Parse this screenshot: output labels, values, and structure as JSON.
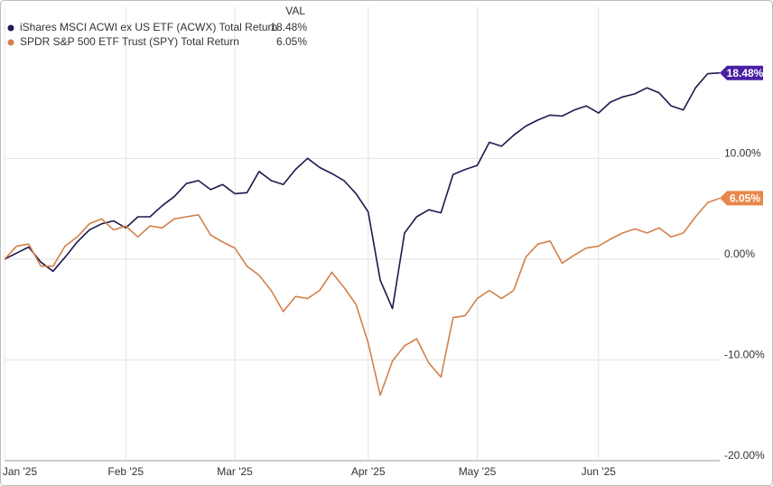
{
  "chart_data": {
    "type": "line",
    "legend_header": "VAL",
    "categories": [
      "Jan '25",
      null,
      null,
      null,
      null,
      null,
      null,
      null,
      null,
      null,
      "Feb '25",
      null,
      null,
      null,
      null,
      null,
      null,
      null,
      null,
      "Mar '25",
      null,
      null,
      null,
      null,
      null,
      null,
      null,
      null,
      null,
      null,
      "Apr '25",
      null,
      null,
      null,
      null,
      null,
      null,
      null,
      null,
      "May '25",
      null,
      null,
      null,
      null,
      null,
      null,
      null,
      null,
      null,
      "Jun '25",
      null,
      null,
      null,
      null,
      null,
      null,
      null,
      null,
      null,
      null
    ],
    "series": [
      {
        "name": "iShares MSCI ACWI ex US ETF (ACWX) Total Return",
        "color": "#1c1a4e",
        "tag_color": "#4a1fa3",
        "values": [
          0,
          0.6,
          1.2,
          -0.3,
          -1.2,
          0.2,
          1.7,
          2.9,
          3.5,
          3.8,
          3.1,
          4.2,
          4.2,
          5.3,
          6.2,
          7.5,
          7.8,
          6.9,
          7.4,
          6.5,
          6.6,
          8.7,
          7.8,
          7.4,
          8.9,
          10.0,
          9.1,
          8.5,
          7.8,
          6.5,
          4.7,
          -2.1,
          -4.9,
          2.6,
          4.2,
          4.9,
          4.6,
          8.4,
          8.9,
          9.3,
          11.6,
          11.2,
          12.3,
          13.2,
          13.8,
          14.3,
          14.2,
          14.8,
          15.2,
          14.5,
          15.6,
          16.1,
          16.4,
          17.0,
          16.5,
          15.2,
          14.8,
          17.0,
          18.4,
          18.48
        ],
        "value_labels": [
          null,
          null,
          null,
          null,
          null,
          null,
          null,
          null,
          null,
          null,
          null,
          null,
          null,
          null,
          null,
          null,
          null,
          null,
          null,
          null,
          null,
          null,
          null,
          null,
          null,
          null,
          null,
          null,
          null,
          null,
          null,
          null,
          null,
          null,
          null,
          null,
          null,
          null,
          null,
          null,
          null,
          null,
          null,
          null,
          null,
          null,
          null,
          null,
          null,
          null,
          null,
          null,
          null,
          null,
          null,
          null,
          null,
          null,
          null,
          "18.48%"
        ]
      },
      {
        "name": "SPDR S&P 500 ETF Trust (SPY) Total Return",
        "color": "#d4804a",
        "tag_color": "#e8874a",
        "values": [
          0,
          1.3,
          1.5,
          -0.7,
          -0.7,
          1.3,
          2.2,
          3.5,
          4.0,
          2.9,
          3.3,
          2.2,
          3.3,
          3.1,
          4.0,
          4.2,
          4.4,
          2.4,
          1.7,
          1.1,
          -0.7,
          -1.6,
          -3.1,
          -5.2,
          -3.7,
          -3.9,
          -3.1,
          -1.3,
          -2.8,
          -4.5,
          -8.3,
          -13.5,
          -10.1,
          -8.6,
          -7.9,
          -10.3,
          -11.7,
          -5.8,
          -5.6,
          -3.9,
          -3.1,
          -3.9,
          -3.1,
          0.2,
          1.5,
          1.8,
          -0.4,
          0.4,
          1.1,
          1.3,
          2.0,
          2.6,
          3.0,
          2.6,
          3.1,
          2.2,
          2.6,
          4.2,
          5.6,
          6.05
        ],
        "value_labels": [
          null,
          null,
          null,
          null,
          null,
          null,
          null,
          null,
          null,
          null,
          null,
          null,
          null,
          null,
          null,
          null,
          null,
          null,
          null,
          null,
          null,
          null,
          null,
          null,
          null,
          null,
          null,
          null,
          null,
          null,
          null,
          null,
          null,
          null,
          null,
          null,
          null,
          null,
          null,
          null,
          null,
          null,
          null,
          null,
          null,
          null,
          null,
          null,
          null,
          null,
          null,
          null,
          null,
          null,
          null,
          null,
          null,
          null,
          null,
          "6.05%"
        ]
      }
    ],
    "ylim": [
      -20,
      25
    ],
    "yticks": [
      {
        "value": -20,
        "label": "-20.00%"
      },
      {
        "value": -10,
        "label": "-10.00%"
      },
      {
        "value": 0,
        "label": "0.00%"
      },
      {
        "value": 10,
        "label": "10.00%"
      }
    ],
    "grid": true
  }
}
